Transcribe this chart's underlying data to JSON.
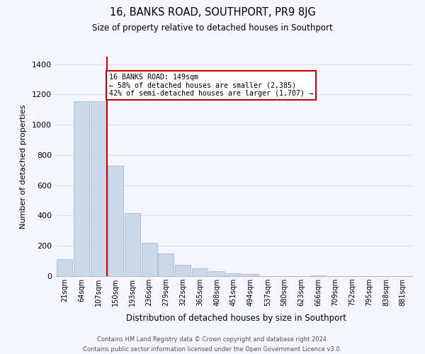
{
  "title": "16, BANKS ROAD, SOUTHPORT, PR9 8JG",
  "subtitle": "Size of property relative to detached houses in Southport",
  "xlabel": "Distribution of detached houses by size in Southport",
  "ylabel": "Number of detached properties",
  "bar_labels": [
    "21sqm",
    "64sqm",
    "107sqm",
    "150sqm",
    "193sqm",
    "236sqm",
    "279sqm",
    "322sqm",
    "365sqm",
    "408sqm",
    "451sqm",
    "494sqm",
    "537sqm",
    "580sqm",
    "623sqm",
    "666sqm",
    "709sqm",
    "752sqm",
    "795sqm",
    "838sqm",
    "881sqm"
  ],
  "bar_values": [
    110,
    1155,
    1155,
    730,
    415,
    220,
    148,
    75,
    50,
    32,
    18,
    15,
    0,
    0,
    0,
    5,
    0,
    0,
    0,
    0,
    0
  ],
  "bar_color": "#c9d9ea",
  "bar_edge_color": "#aabcce",
  "vline_color": "#cc0000",
  "annotation_text": "16 BANKS ROAD: 149sqm\n← 58% of detached houses are smaller (2,385)\n42% of semi-detached houses are larger (1,707) →",
  "annotation_box_color": "#ffffff",
  "annotation_box_edge": "#cc0000",
  "ylim": [
    0,
    1450
  ],
  "yticks": [
    0,
    200,
    400,
    600,
    800,
    1000,
    1200,
    1400
  ],
  "footer_line1": "Contains HM Land Registry data © Crown copyright and database right 2024.",
  "footer_line2": "Contains public sector information licensed under the Open Government Licence v3.0.",
  "bg_color": "#f5f5ff",
  "grid_color": "#d8dff0"
}
